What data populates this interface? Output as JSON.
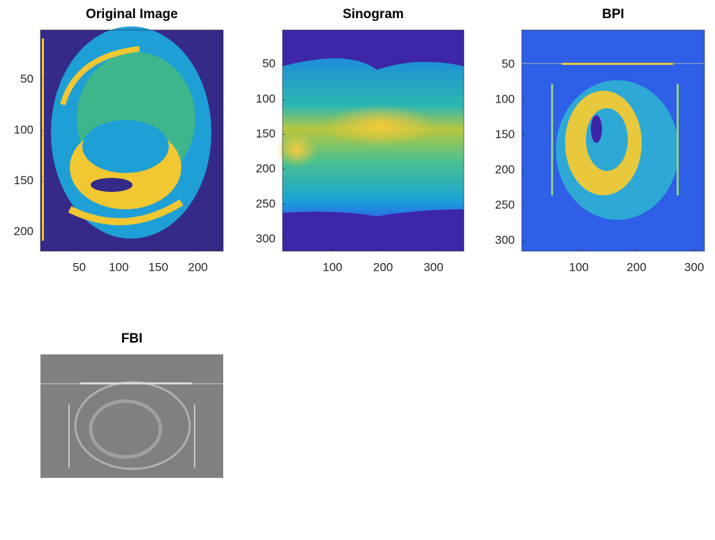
{
  "chart_data": [
    {
      "type": "image",
      "title": "Original Image",
      "xlim": [
        1,
        232
      ],
      "ylim": [
        1,
        219
      ],
      "xticks": [
        50,
        100,
        150,
        200
      ],
      "yticks": [
        50,
        100,
        150,
        200
      ],
      "colormap": "parula"
    },
    {
      "type": "image",
      "title": "Sinogram",
      "xlim": [
        1,
        360
      ],
      "ylim": [
        1,
        317
      ],
      "xticks": [
        100,
        200,
        300
      ],
      "yticks": [
        50,
        100,
        150,
        200,
        250,
        300
      ],
      "colormap": "parula"
    },
    {
      "type": "image",
      "title": "BPI",
      "xlim": [
        1,
        318
      ],
      "ylim": [
        1,
        315
      ],
      "xticks": [
        100,
        200,
        300
      ],
      "yticks": [
        50,
        100,
        150,
        200,
        250,
        300
      ],
      "colormap": "parula"
    },
    {
      "type": "image",
      "title": "FBI",
      "colormap": "gray"
    }
  ]
}
